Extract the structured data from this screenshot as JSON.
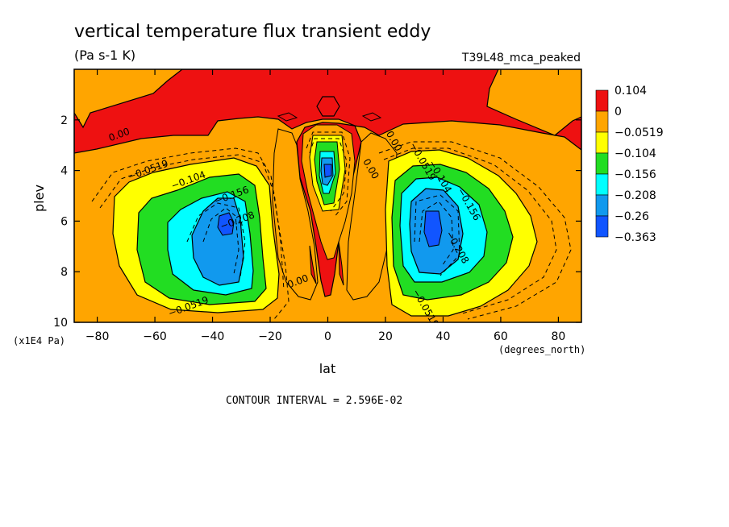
{
  "chart_data": {
    "type": "heatmap",
    "subtype": "filled-contour",
    "title": "vertical temperature flux transient eddy",
    "units": "(Pa s-1 K)",
    "run_label": "T39L48_mca_peaked",
    "xlabel": "lat",
    "ylabel": "plev",
    "x_units": "(degrees_north)",
    "y_units": "(x1E4 Pa)",
    "contour_interval_text": "CONTOUR INTERVAL = 2.596E-02",
    "x_ticks": [
      "-80",
      "-60",
      "-40",
      "-20",
      "0",
      "20",
      "40",
      "60",
      "80"
    ],
    "y_ticks": [
      "2",
      "4",
      "6",
      "8",
      "10"
    ],
    "xlim": [
      -88,
      88
    ],
    "ylim": [
      10,
      0
    ],
    "y_axis": "inverted",
    "grid": false,
    "legend_position": "right",
    "colorbar": {
      "labels": [
        "0.104",
        "0",
        "-0.0519",
        "-0.104",
        "-0.156",
        "-0.208",
        "-0.26",
        "-0.363"
      ],
      "bins": [
        {
          "color": "#ee1111"
        },
        {
          "color": "#ffa500"
        },
        {
          "color": "#ffff00"
        },
        {
          "color": "#22dd22"
        },
        {
          "color": "#00ffff"
        },
        {
          "color": "#1199ee"
        },
        {
          "color": "#1155ff"
        }
      ]
    },
    "contour_labels": [
      {
        "text": "0.00",
        "lat": -72,
        "p": 2.7
      },
      {
        "text": "0.00",
        "lat": 14,
        "p": 4.0
      },
      {
        "text": "0.00",
        "lat": 22,
        "p": 2.9
      },
      {
        "text": "0.00",
        "lat": -10,
        "p": 8.5
      },
      {
        "text": "-0.0519",
        "lat": -62,
        "p": 4.1
      },
      {
        "text": "-0.104",
        "lat": -48,
        "p": 4.5
      },
      {
        "text": "-0.156",
        "lat": -33,
        "p": 5.1
      },
      {
        "text": "-0.208",
        "lat": -31,
        "p": 6.1
      },
      {
        "text": "-0.0519",
        "lat": -48,
        "p": 9.5
      },
      {
        "text": "-0.0519",
        "lat": 32,
        "p": 3.7
      },
      {
        "text": "-0.104",
        "lat": 38,
        "p": 4.3
      },
      {
        "text": "-0.156",
        "lat": 48,
        "p": 5.4
      },
      {
        "text": "-0.208",
        "lat": 44,
        "p": 7.1
      },
      {
        "text": "-0.0519",
        "lat": 33,
        "p": 9.5
      }
    ],
    "minima": [
      {
        "lat": -36,
        "p": 6.1,
        "value": -0.363
      },
      {
        "lat": 36,
        "p": 6.2,
        "value": -0.363
      },
      {
        "lat": 0,
        "p": 4.2,
        "value": -0.26
      }
    ]
  }
}
